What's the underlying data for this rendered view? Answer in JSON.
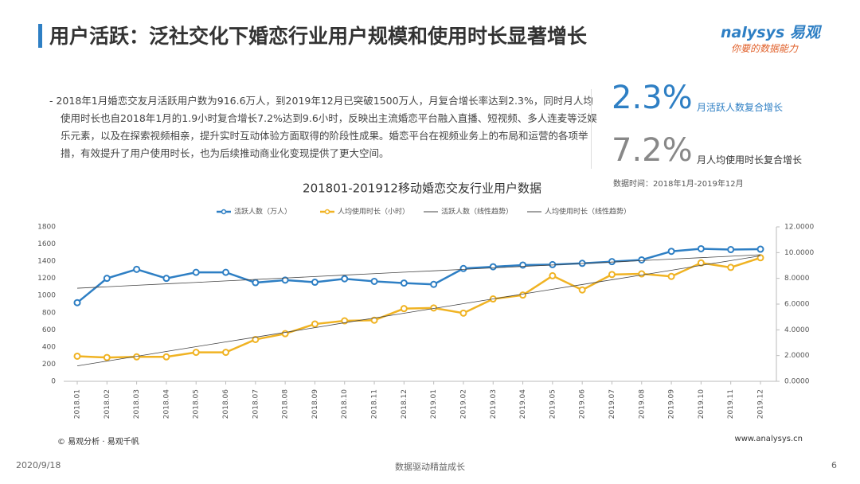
{
  "header": {
    "title": "用户活跃：泛社交化下婚恋行业用户规模和使用时长显著增长",
    "brand": "nalysys 易观",
    "slogan": "你要的数据能力"
  },
  "summary": {
    "text": "2018年1月婚恋交友月活跃用户数为916.6万人，到2019年12月已突破1500万人，月复合增长率达到2.3%，同时月人均使用时长也自2018年1月的1.9小时复合增长7.2%达到9.6小时，反映出主流婚恋平台融入直播、短视频、多人连麦等泛娱乐元素，以及在探索视频相亲，提升实时互动体验方面取得的阶段性成果。婚恋平台在视频业务上的布局和运营的各项举措，有效提升了用户使用时长，也为后续推动商业化变现提供了更大空间。",
    "stats": [
      {
        "value": "2.3%",
        "label": "月活跃人数复合增长"
      },
      {
        "value": "7.2%",
        "label": "月人均使用时长复合增长"
      }
    ],
    "source": "数据时间：2018年1月-2019年12月"
  },
  "chart_data": {
    "type": "line",
    "title": "201801-201912移动婚恋交友行业用户数据",
    "categories": [
      "2018.01",
      "2018.02",
      "2018.03",
      "2018.04",
      "2018.05",
      "2018.06",
      "2018.07",
      "2018.08",
      "2018.09",
      "2018.10",
      "2018.11",
      "2018.12",
      "2019.01",
      "2019.02",
      "2019.03",
      "2019.04",
      "2019.05",
      "2019.06",
      "2019.07",
      "2019.08",
      "2019.09",
      "2019.10",
      "2019.11",
      "2019.12"
    ],
    "series": [
      {
        "name": "活跃人数（万人）",
        "color": "#2e7fc4",
        "marker": true,
        "axis": "y",
        "values": [
          916.6,
          1200,
          1305,
          1200,
          1270,
          1270,
          1150,
          1180,
          1155,
          1195,
          1165,
          1145,
          1130,
          1315,
          1335,
          1355,
          1360,
          1375,
          1395,
          1415,
          1515,
          1545,
          1535,
          1540
        ]
      },
      {
        "name": "人均使用时长（小时）",
        "color": "#f0b323",
        "marker": true,
        "axis": "y2",
        "values": [
          1.95,
          1.85,
          1.9,
          1.9,
          2.25,
          2.25,
          3.25,
          3.7,
          4.45,
          4.7,
          4.75,
          5.65,
          5.7,
          5.3,
          6.4,
          6.7,
          8.2,
          7.1,
          8.3,
          8.35,
          8.15,
          9.2,
          8.85,
          9.6
        ]
      },
      {
        "name": "活跃人数（线性趋势）",
        "color": "#444444",
        "marker": false,
        "axis": "y",
        "values": [
          1085,
          1102,
          1119,
          1136,
          1153,
          1170,
          1187,
          1204,
          1221,
          1238,
          1255,
          1272,
          1288,
          1305,
          1322,
          1339,
          1356,
          1373,
          1390,
          1407,
          1424,
          1441,
          1458,
          1475
        ]
      },
      {
        "name": "人均使用时长（线性趋势）",
        "color": "#444444",
        "marker": false,
        "axis": "y2",
        "values": [
          1.2,
          1.57,
          1.94,
          2.32,
          2.69,
          3.06,
          3.43,
          3.8,
          4.17,
          4.55,
          4.92,
          5.29,
          5.66,
          6.03,
          6.4,
          6.78,
          7.15,
          7.52,
          7.89,
          8.26,
          8.63,
          9.01,
          9.38,
          9.75
        ]
      }
    ],
    "ylim": [
      0,
      1800
    ],
    "yticks": [
      0,
      200,
      400,
      600,
      800,
      1000,
      1200,
      1400,
      1600,
      1800
    ],
    "y2lim": [
      0,
      12
    ],
    "y2ticks": [
      {
        "value": 0,
        "label": "0.0000"
      },
      {
        "value": 2,
        "label": "2.0000"
      },
      {
        "value": 4,
        "label": "4.0000"
      },
      {
        "value": 6,
        "label": "6.0000"
      },
      {
        "value": 8,
        "label": "8.0000"
      },
      {
        "value": 10,
        "label": "10.0000"
      },
      {
        "value": 12,
        "label": "12.0000"
      }
    ],
    "grid": false,
    "legend": "top"
  },
  "footer": {
    "copyright": "© 易观分析 · 易观千帆",
    "site": "www.analysys.cn",
    "date": "2020/9/18",
    "motto": "数据驱动精益成长",
    "page": "6"
  }
}
